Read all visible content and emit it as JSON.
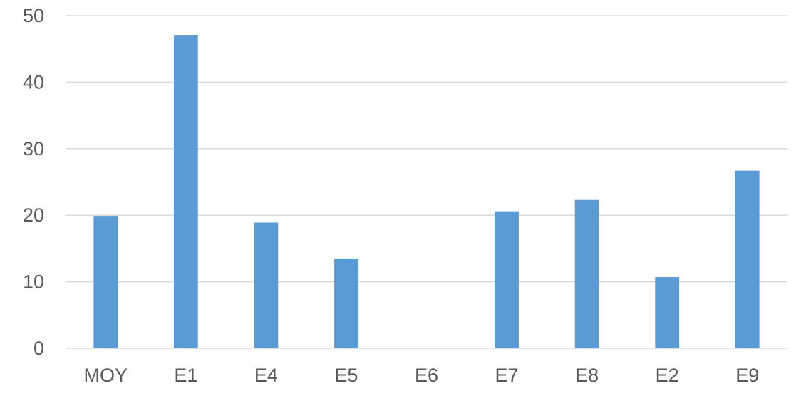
{
  "chart_data": {
    "type": "bar",
    "categories": [
      "MOY",
      "E1",
      "E4",
      "E5",
      "E6",
      "E7",
      "E8",
      "E2",
      "E9"
    ],
    "series": [
      {
        "values": [
          19.9,
          47.1,
          18.9,
          13.5,
          0,
          20.6,
          22.3,
          10.7,
          26.7
        ],
        "color": "#5b9bd5"
      }
    ],
    "ylim": [
      0,
      50
    ],
    "yticks": [
      0,
      10,
      20,
      30,
      40,
      50
    ],
    "grid": true,
    "legend": "none"
  }
}
